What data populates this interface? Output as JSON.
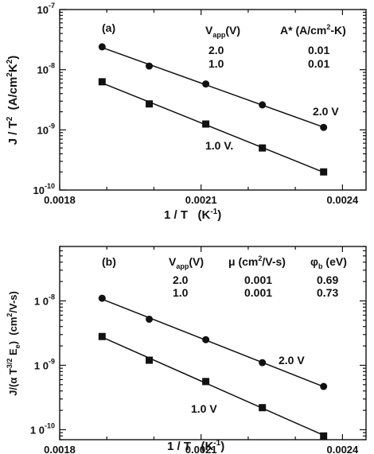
{
  "chart_data": [
    {
      "type": "scatter",
      "panel_label": "(a)",
      "scale": "log-y",
      "xlabel": "1 / T  (K⁻¹)",
      "ylabel": "J / T² (A/cm²K²)",
      "xlim": [
        0.0018,
        0.00245
      ],
      "ylim": [
        1e-10,
        1e-07
      ],
      "x_ticks": [
        0.0018,
        0.0021,
        0.0024
      ],
      "x_tick_labels": [
        "0.0018",
        "0.0021",
        "0.0024"
      ],
      "y_ticks": [
        1e-07,
        1e-08,
        1e-09,
        1e-10
      ],
      "y_tick_labels": [
        "10⁻⁷",
        "10⁻⁸",
        "10⁻⁹",
        "10⁻¹⁰"
      ],
      "table": {
        "headers": [
          "Vapp(V)",
          "A* (A/cm²-K)"
        ],
        "rows": [
          [
            "2.0",
            "0.01"
          ],
          [
            "1.0",
            "0.01"
          ]
        ]
      },
      "series": [
        {
          "name": "2.0 V",
          "marker": "circle",
          "x": [
            0.00189,
            0.00199,
            0.00211,
            0.00223,
            0.00236
          ],
          "y": [
            2.4e-08,
            1.15e-08,
            5.8e-09,
            2.6e-09,
            1.1e-09
          ]
        },
        {
          "name": "1.0 V",
          "marker": "square",
          "x": [
            0.00189,
            0.00199,
            0.00211,
            0.00223,
            0.00236
          ],
          "y": [
            6.3e-09,
            2.7e-09,
            1.25e-09,
            5e-10,
            2e-10
          ]
        }
      ]
    },
    {
      "type": "scatter",
      "panel_label": "(b)",
      "scale": "log-y",
      "xlabel": "1 / T  (K⁻¹)",
      "ylabel": "J/(α T^3/2 Eₑ) (cm²/V-s)",
      "xlim": [
        0.0018,
        0.00245
      ],
      "ylim": [
        7e-11,
        7e-08
      ],
      "x_ticks": [
        0.0018,
        0.0021,
        0.0024
      ],
      "x_tick_labels": [
        "0.0018",
        "0.0021",
        "0.0024"
      ],
      "y_ticks": [
        1e-08,
        1e-09,
        1e-10
      ],
      "y_tick_labels": [
        "1 0⁻⁸",
        "1 0⁻⁹",
        "1 0⁻¹⁰"
      ],
      "table": {
        "headers": [
          "Vapp(V)",
          "μ (cm²/V-s)",
          "φb (eV)"
        ],
        "rows": [
          [
            "2.0",
            "0.001",
            "0.69"
          ],
          [
            "1.0",
            "0.001",
            "0.73"
          ]
        ]
      },
      "series": [
        {
          "name": "2.0 V",
          "marker": "circle",
          "x": [
            0.00189,
            0.00199,
            0.00211,
            0.00223,
            0.00236
          ],
          "y": [
            1.1e-08,
            5.2e-09,
            2.5e-09,
            1.1e-09,
            4.7e-10
          ]
        },
        {
          "name": "1.0 V",
          "marker": "square",
          "x": [
            0.00189,
            0.00199,
            0.00211,
            0.00223,
            0.00236
          ],
          "y": [
            2.8e-09,
            1.2e-09,
            5.6e-10,
            2.2e-10,
            8e-11
          ]
        }
      ]
    }
  ]
}
